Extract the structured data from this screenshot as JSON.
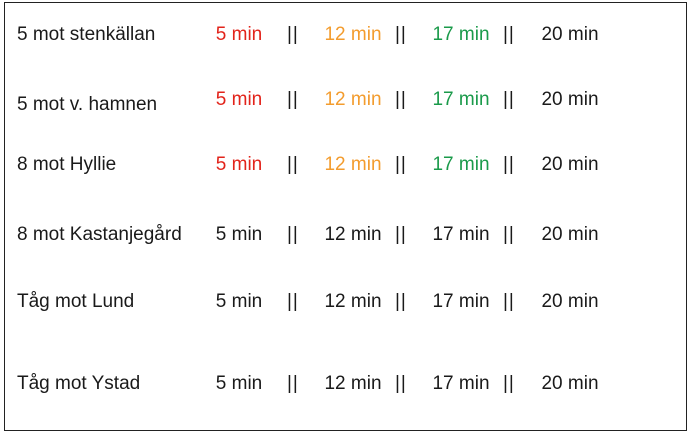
{
  "separator": "||",
  "colors": {
    "default": "#1a1a1a",
    "red": "#e2231a",
    "orange": "#f39c2e",
    "green": "#1a9a4a"
  },
  "departures": [
    {
      "destination": "5 mot stenkällan",
      "times": [
        "5 min",
        "12 min",
        "17 min",
        "20 min"
      ],
      "time_colors": [
        "red",
        "orange",
        "green",
        "default"
      ]
    },
    {
      "destination": "5 mot v. hamnen",
      "times": [
        "5 min",
        "12 min",
        "17 min",
        "20 min"
      ],
      "time_colors": [
        "red",
        "orange",
        "green",
        "default"
      ]
    },
    {
      "destination": "8 mot Hyllie",
      "times": [
        "5 min",
        "12 min",
        "17 min",
        "20 min"
      ],
      "time_colors": [
        "red",
        "orange",
        "green",
        "default"
      ]
    },
    {
      "destination": "8 mot Kastanjegård",
      "times": [
        "5 min",
        "12 min",
        "17 min",
        "20 min"
      ],
      "time_colors": [
        "default",
        "default",
        "default",
        "default"
      ]
    },
    {
      "destination": "Tåg mot Lund",
      "times": [
        "5 min",
        "12 min",
        "17 min",
        "20 min"
      ],
      "time_colors": [
        "default",
        "default",
        "default",
        "default"
      ]
    },
    {
      "destination": "Tåg mot Ystad",
      "times": [
        "5 min",
        "12 min",
        "17 min",
        "20 min"
      ],
      "time_colors": [
        "default",
        "default",
        "default",
        "default"
      ]
    }
  ]
}
